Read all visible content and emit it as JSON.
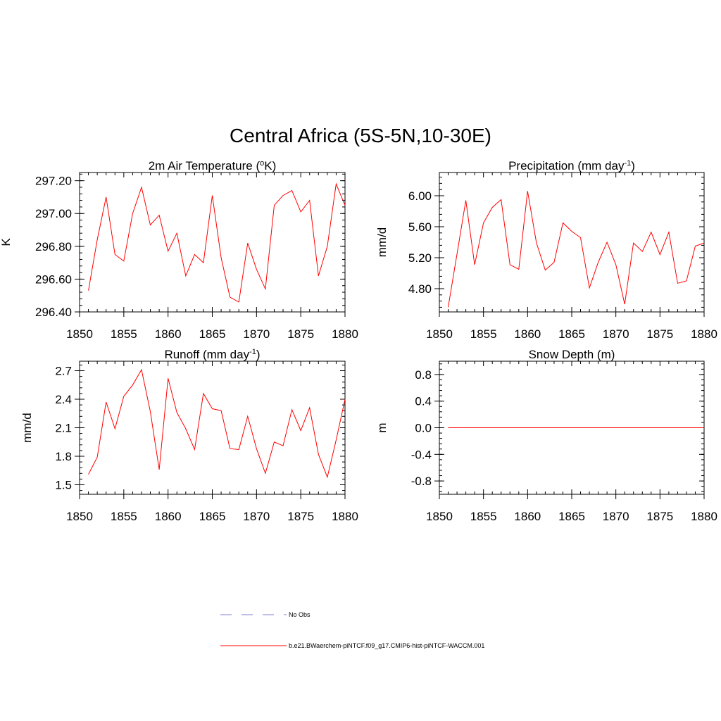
{
  "figure": {
    "title": "Central Africa (5S-5N,10-30E)",
    "line_color": "#ff0000",
    "obs_color": "#9999dd"
  },
  "legend": {
    "obs_label": "No Obs",
    "model_label": "b.e21.BWaerchem-piNTCF.f09_g17.CMIP6-hist-piNTCF-WACCM.001"
  },
  "chart_data": [
    {
      "type": "line",
      "title": "2m Air Temperature (°K)",
      "title_main": "2m Air Temperature (",
      "title_sup": "o",
      "title_tail": "K)",
      "ylabel": "K",
      "xlim": [
        1850,
        1880
      ],
      "ylim": [
        296.4,
        297.25
      ],
      "yticks": [
        296.4,
        296.6,
        296.8,
        297.0,
        297.2
      ],
      "ytick_labels": [
        "296.40",
        "296.60",
        "296.80",
        "297.00",
        "297.20"
      ],
      "xticks": [
        1850,
        1855,
        1860,
        1865,
        1870,
        1875,
        1880
      ],
      "x": [
        1851,
        1852,
        1853,
        1854,
        1855,
        1856,
        1857,
        1858,
        1859,
        1860,
        1861,
        1862,
        1863,
        1864,
        1865,
        1866,
        1867,
        1868,
        1869,
        1870,
        1871,
        1872,
        1873,
        1874,
        1875,
        1876,
        1877,
        1878,
        1879,
        1880
      ],
      "series": [
        {
          "name": "b.e21.BWaerchem-piNTCF.f09_g17.CMIP6-hist-piNTCF-WACCM.001",
          "values": [
            296.53,
            296.84,
            297.1,
            296.75,
            296.71,
            297.0,
            297.16,
            296.93,
            296.99,
            296.77,
            296.88,
            296.62,
            296.75,
            296.7,
            297.11,
            296.73,
            296.49,
            296.46,
            296.82,
            296.66,
            296.54,
            297.05,
            297.11,
            297.14,
            297.01,
            297.08,
            296.62,
            296.8,
            297.18,
            297.05
          ]
        }
      ]
    },
    {
      "type": "line",
      "title": "Precipitation (mm day-1)",
      "title_main": "Precipitation (mm day",
      "title_sup": "-1",
      "title_tail": ")",
      "ylabel": "mm/d",
      "xlim": [
        1850,
        1880
      ],
      "ylim": [
        4.5,
        6.3
      ],
      "yticks": [
        4.8,
        5.2,
        5.6,
        6.0
      ],
      "ytick_labels": [
        "4.80",
        "5.20",
        "5.60",
        "6.00"
      ],
      "xticks": [
        1850,
        1855,
        1860,
        1865,
        1870,
        1875,
        1880
      ],
      "x": [
        1851,
        1852,
        1853,
        1854,
        1855,
        1856,
        1857,
        1858,
        1859,
        1860,
        1861,
        1862,
        1863,
        1864,
        1865,
        1866,
        1867,
        1868,
        1869,
        1870,
        1871,
        1872,
        1873,
        1874,
        1875,
        1876,
        1877,
        1878,
        1879,
        1880
      ],
      "series": [
        {
          "name": "b.e21.BWaerchem-piNTCF.f09_g17.CMIP6-hist-piNTCF-WACCM.001",
          "values": [
            4.56,
            5.25,
            5.94,
            5.11,
            5.65,
            5.85,
            5.95,
            5.11,
            5.05,
            6.06,
            5.39,
            5.04,
            5.14,
            5.65,
            5.54,
            5.46,
            4.81,
            5.14,
            5.4,
            5.11,
            4.6,
            5.39,
            5.28,
            5.53,
            5.24,
            5.53,
            4.87,
            4.9,
            5.35,
            5.39
          ]
        }
      ]
    },
    {
      "type": "line",
      "title": "Runoff (mm day-1)",
      "title_main": "Runoff (mm day",
      "title_sup": "-1",
      "title_tail": ")",
      "ylabel": "mm/d",
      "xlim": [
        1850,
        1880
      ],
      "ylim": [
        1.4,
        2.8
      ],
      "yticks": [
        1.5,
        1.8,
        2.1,
        2.4,
        2.7
      ],
      "ytick_labels": [
        "1.5",
        "1.8",
        "2.1",
        "2.4",
        "2.7"
      ],
      "xticks": [
        1850,
        1855,
        1860,
        1865,
        1870,
        1875,
        1880
      ],
      "x": [
        1851,
        1852,
        1853,
        1854,
        1855,
        1856,
        1857,
        1858,
        1859,
        1860,
        1861,
        1862,
        1863,
        1864,
        1865,
        1866,
        1867,
        1868,
        1869,
        1870,
        1871,
        1872,
        1873,
        1874,
        1875,
        1876,
        1877,
        1878,
        1879,
        1880
      ],
      "series": [
        {
          "name": "b.e21.BWaerchem-piNTCF.f09_g17.CMIP6-hist-piNTCF-WACCM.001",
          "values": [
            1.61,
            1.79,
            2.37,
            2.09,
            2.43,
            2.55,
            2.71,
            2.27,
            1.66,
            2.62,
            2.26,
            2.09,
            1.87,
            2.46,
            2.3,
            2.28,
            1.88,
            1.87,
            2.22,
            1.88,
            1.62,
            1.95,
            1.91,
            2.29,
            2.07,
            2.31,
            1.82,
            1.58,
            1.97,
            2.4
          ]
        }
      ]
    },
    {
      "type": "line",
      "title": "Snow Depth (m)",
      "title_main": "Snow Depth (m)",
      "title_sup": "",
      "title_tail": "",
      "ylabel": "m",
      "xlim": [
        1850,
        1880
      ],
      "ylim": [
        -1.0,
        1.0
      ],
      "yticks": [
        -0.8,
        -0.4,
        0.0,
        0.4,
        0.8
      ],
      "ytick_labels": [
        "-0.8",
        "-0.4",
        "0.0",
        "0.4",
        "0.8"
      ],
      "xticks": [
        1850,
        1855,
        1860,
        1865,
        1870,
        1875,
        1880
      ],
      "x": [
        1851,
        1852,
        1853,
        1854,
        1855,
        1856,
        1857,
        1858,
        1859,
        1860,
        1861,
        1862,
        1863,
        1864,
        1865,
        1866,
        1867,
        1868,
        1869,
        1870,
        1871,
        1872,
        1873,
        1874,
        1875,
        1876,
        1877,
        1878,
        1879,
        1880
      ],
      "series": [
        {
          "name": "b.e21.BWaerchem-piNTCF.f09_g17.CMIP6-hist-piNTCF-WACCM.001",
          "values": [
            0,
            0,
            0,
            0,
            0,
            0,
            0,
            0,
            0,
            0,
            0,
            0,
            0,
            0,
            0,
            0,
            0,
            0,
            0,
            0,
            0,
            0,
            0,
            0,
            0,
            0,
            0,
            0,
            0,
            0
          ]
        }
      ]
    }
  ]
}
